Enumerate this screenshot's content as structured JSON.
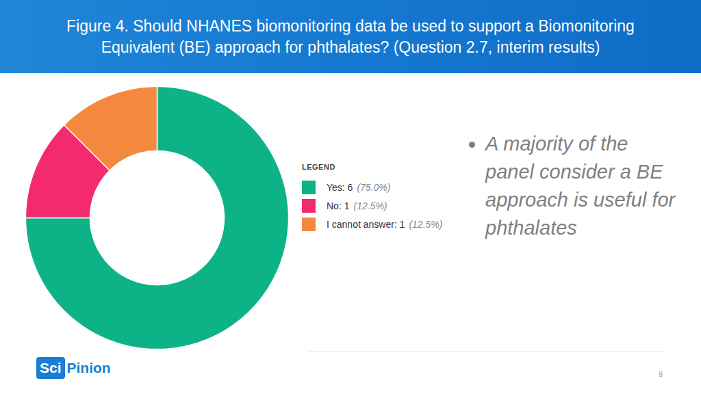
{
  "chart_data": {
    "type": "pie",
    "title": "Figure 4. Should NHANES biomonitoring data be used to support a Biomonitoring Equivalent (BE) approach for phthalates? (Question 2.7, interim results)",
    "categories": [
      "Yes",
      "No",
      "I cannot answer"
    ],
    "values": [
      75.0,
      12.5,
      12.5
    ],
    "value_labels": [
      "(75.0%)",
      "(12.5%)",
      "(12.5%)"
    ],
    "legend_labels": [
      "Yes: 6",
      "No: 1",
      "I cannot answer: 1"
    ],
    "legend_title": "LEGEND",
    "colors": [
      "#0db386",
      "#f42a6f",
      "#f5883f"
    ],
    "annotation": "A majority of the panel consider a BE approach is useful for phthalates"
  },
  "footer": {
    "logo_prefix": "Sci",
    "logo_suffix": "Pinion",
    "page": "9"
  }
}
